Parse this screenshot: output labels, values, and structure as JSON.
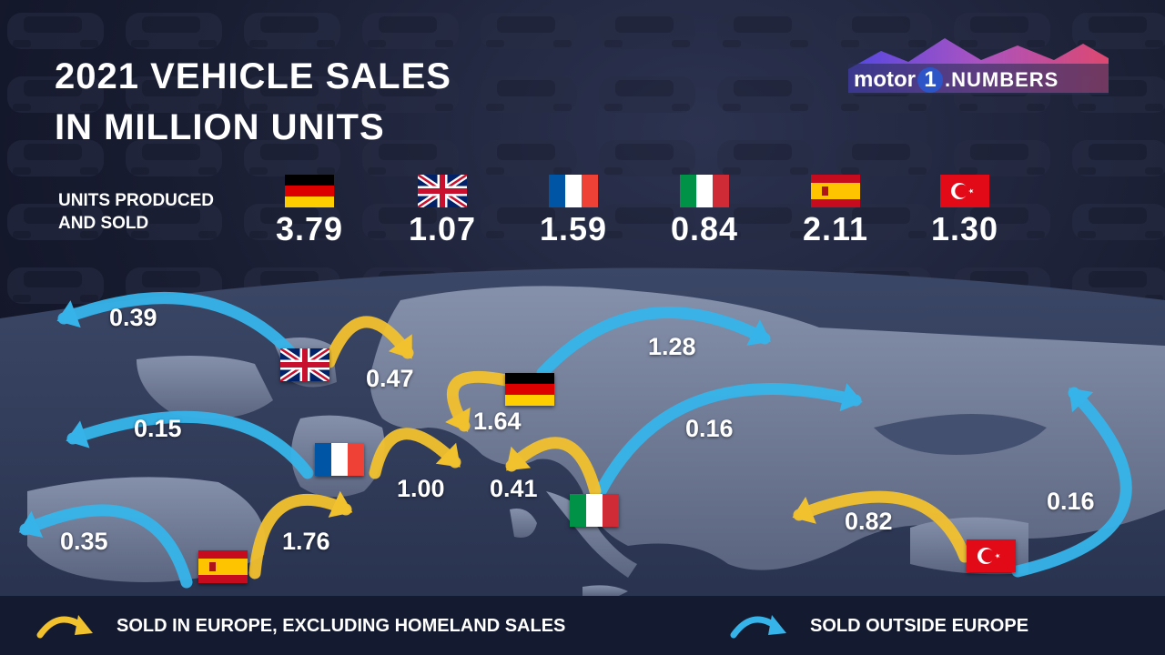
{
  "chart_data": {
    "type": "flow-map",
    "title": "2021 VEHICLE SALES IN MILLION UNITS",
    "title_lines": [
      "2021 VEHICLE SALES",
      "IN MILLION UNITS"
    ],
    "units_label": "UNITS PRODUCED\nAND SOLD",
    "countries": [
      {
        "id": "germany",
        "units_produced_and_sold": "3.79",
        "sold_in_europe_excl_homeland": "1.64",
        "sold_outside_europe": "1.28"
      },
      {
        "id": "uk",
        "units_produced_and_sold": "1.07",
        "sold_in_europe_excl_homeland": "0.47",
        "sold_outside_europe": "0.39"
      },
      {
        "id": "france",
        "units_produced_and_sold": "1.59",
        "sold_in_europe_excl_homeland": "1.00",
        "sold_outside_europe": "0.15"
      },
      {
        "id": "italy",
        "units_produced_and_sold": "0.84",
        "sold_in_europe_excl_homeland": "0.41",
        "sold_outside_europe": "0.16"
      },
      {
        "id": "spain",
        "units_produced_and_sold": "2.11",
        "sold_in_europe_excl_homeland": "1.76",
        "sold_outside_europe": "0.35"
      },
      {
        "id": "turkey",
        "units_produced_and_sold": "1.30",
        "sold_in_europe_excl_homeland": "0.82",
        "sold_outside_europe": "0.16"
      }
    ],
    "legend": [
      {
        "key": "europe",
        "label": "SOLD IN EUROPE, EXCLUDING HOMELAND SALES",
        "color": "#f2c12e"
      },
      {
        "key": "outside",
        "label": "SOLD OUTSIDE EUROPE",
        "color": "#36b4ea"
      }
    ]
  },
  "logo": {
    "word": "motor",
    "numeral": "1",
    "suffix": ".NUMBERS"
  },
  "colors": {
    "europe_arrow": "#f2c12e",
    "outside_arrow": "#36b4ea",
    "background": "#181c30",
    "land": "#6d7892",
    "footer": "#141a30"
  },
  "icons": {
    "europe_legend": "curved-arrow-yellow-icon",
    "outside_legend": "curved-arrow-blue-icon"
  }
}
